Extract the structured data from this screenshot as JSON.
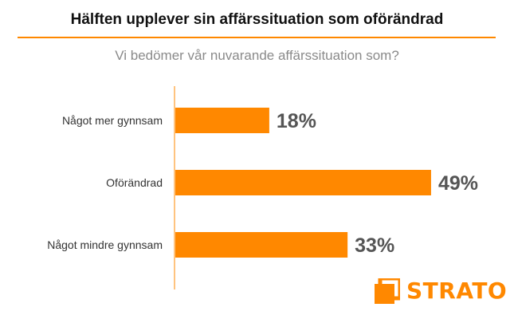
{
  "header": {
    "title": "Hälften upplever sin affärssituation som oförändrad",
    "subtitle": "Vi bedömer vår nuvarande affärssituation som?"
  },
  "brand": {
    "name": "STRATO",
    "accent": "#ff8800"
  },
  "chart_data": {
    "type": "bar",
    "orientation": "horizontal",
    "categories": [
      "Något mer gynnsam",
      "Oförändrad",
      "Något mindre gynnsam"
    ],
    "values": [
      18,
      49,
      33
    ],
    "value_labels": [
      "18%",
      "49%",
      "33%"
    ],
    "unit": "%",
    "xlim": [
      0,
      100
    ],
    "grid": false,
    "bar_color": "#ff8800"
  }
}
